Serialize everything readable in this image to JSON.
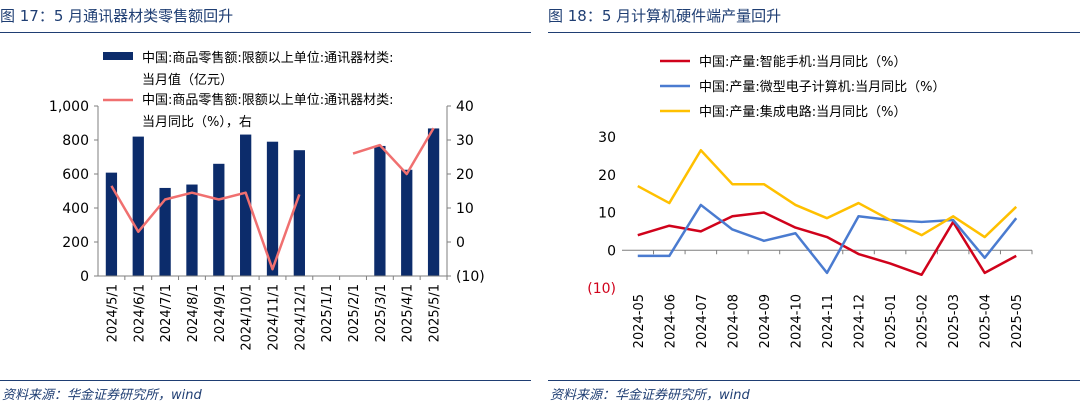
{
  "left": {
    "title": "图 17：5 月通讯器材类零售额回升",
    "source": "资料来源：华金证券研究所，wind",
    "chart_data": {
      "type": "bar",
      "categories": [
        "2024/5/1",
        "2024/6/1",
        "2024/7/1",
        "2024/8/1",
        "2024/9/1",
        "2024/10/1",
        "2024/11/1",
        "2024/12/1",
        "2025/1/1",
        "2025/2/1",
        "2025/3/1",
        "2025/4/1",
        "2025/5/1"
      ],
      "series": [
        {
          "name": "中国:商品零售额:限额以上单位:通讯器材类:当月值（亿元）",
          "type": "bar",
          "axis": "left",
          "color": "#0c2c6b",
          "values": [
            608,
            820,
            518,
            538,
            660,
            832,
            790,
            740,
            null,
            null,
            765,
            625,
            868
          ]
        },
        {
          "name": "中国:商品零售额:限额以上单位:通讯器材类:当月同比（%），右",
          "type": "line",
          "axis": "right",
          "color": "#f07070",
          "values": [
            16.5,
            3,
            12.5,
            14.5,
            12.5,
            14.5,
            -8,
            14,
            null,
            26,
            28.5,
            20,
            33.5
          ]
        }
      ],
      "legend": [
        {
          "line1": "中国:商品零售额:限额以上单位:通讯器材类:",
          "line2": "当月值（亿元）"
        },
        {
          "line1": "中国:商品零售额:限额以上单位:通讯器材类:",
          "line2": "当月同比（%），右"
        }
      ],
      "y_left": {
        "min": 0,
        "max": 1000,
        "ticks": [
          "0",
          "200",
          "400",
          "600",
          "800",
          "1,000"
        ]
      },
      "y_right": {
        "min": -10,
        "max": 40,
        "ticks": [
          "(10)",
          "0",
          "10",
          "20",
          "30",
          "40"
        ]
      },
      "grid": false,
      "legend_position": "top"
    }
  },
  "right": {
    "title": "图 18：5 月计算机硬件端产量回升",
    "source": "资料来源：华金证券研究所，wind",
    "chart_data": {
      "type": "line",
      "categories": [
        "2024-05",
        "2024-06",
        "2024-07",
        "2024-08",
        "2024-09",
        "2024-10",
        "2024-11",
        "2024-12",
        "2025-01",
        "2025-02",
        "2025-03",
        "2025-04",
        "2025-05"
      ],
      "series": [
        {
          "name": "中国:产量:智能手机:当月同比（%）",
          "color": "#d0021b",
          "values": [
            4,
            6.5,
            5,
            9,
            10,
            6,
            3.5,
            -1,
            -3.5,
            -6.5,
            7.5,
            -6,
            -1.5
          ]
        },
        {
          "name": "中国:产量:微型电子计算机:当月同比（%）",
          "color": "#4a7bd0",
          "values": [
            -1.5,
            -1.5,
            12,
            5.5,
            2.5,
            4.5,
            -6,
            9,
            8,
            7.5,
            8,
            -2,
            8.5
          ]
        },
        {
          "name": "中国:产量:集成电路:当月同比（%）",
          "color": "#ffc000",
          "values": [
            17,
            12.5,
            26.5,
            17.5,
            17.5,
            12,
            8.5,
            12.5,
            8,
            4,
            9,
            3.5,
            11.5
          ]
        }
      ],
      "y": {
        "min": -10,
        "max": 30,
        "ticks": [
          "(10)",
          "0",
          "10",
          "20",
          "30"
        ]
      },
      "grid": false,
      "legend_position": "top"
    }
  }
}
